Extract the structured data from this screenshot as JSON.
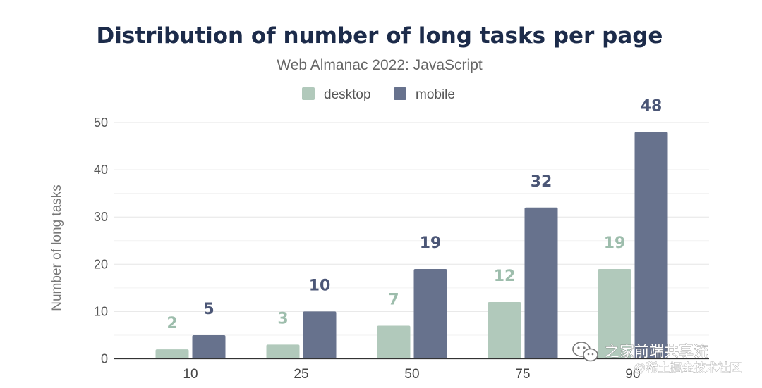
{
  "chart_data": {
    "type": "bar",
    "title": "Distribution of number of long tasks per page",
    "subtitle": "Web Almanac 2022: JavaScript",
    "xlabel": "",
    "ylabel": "Number of long tasks",
    "categories": [
      "10",
      "25",
      "50",
      "75",
      "90"
    ],
    "series": [
      {
        "name": "desktop",
        "color": "#b1c9bb",
        "label_color": "#9dbdac",
        "values": [
          2,
          3,
          7,
          12,
          19
        ]
      },
      {
        "name": "mobile",
        "color": "#67728d",
        "label_color": "#4b5676",
        "values": [
          5,
          10,
          19,
          32,
          48
        ]
      }
    ],
    "ylim": [
      0,
      50
    ],
    "yticks": [
      0,
      10,
      20,
      30,
      40,
      50
    ],
    "grid": true,
    "legend": "top-center"
  },
  "watermark": {
    "line1": "之家前端共享流",
    "line2": "@稀土掘金技术社区",
    "icon": "wechat-icon"
  }
}
